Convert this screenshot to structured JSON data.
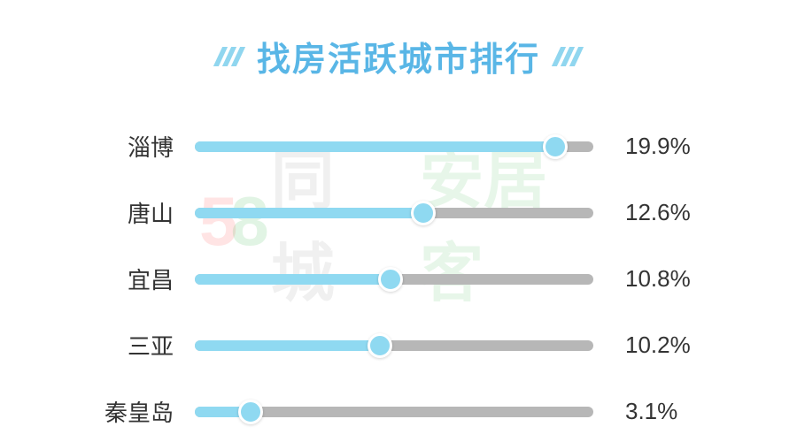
{
  "title": "找房活跃城市排行",
  "title_color": "#59b6e6",
  "title_fontsize": 38,
  "slash_color": "#90d6ef",
  "bar_track_color": "#b7b7b7",
  "bar_fill_color": "#8fd9f1",
  "knob_color": "#8fd9f1",
  "background_color": "#ffffff",
  "label_color": "#333333",
  "label_fontsize": 26,
  "bar_max_pct": 22,
  "cities": [
    {
      "name": "淄博",
      "value": 19.9,
      "display": "19.9%"
    },
    {
      "name": "唐山",
      "value": 12.6,
      "display": "12.6%"
    },
    {
      "name": "宜昌",
      "value": 10.8,
      "display": "10.8%"
    },
    {
      "name": "三亚",
      "value": 10.2,
      "display": "10.2%"
    },
    {
      "name": "秦皇岛",
      "value": 3.1,
      "display": "3.1%"
    }
  ],
  "watermark": {
    "five": "5",
    "eight": "8",
    "tongcheng": "同城",
    "anjuke": "安居客"
  }
}
